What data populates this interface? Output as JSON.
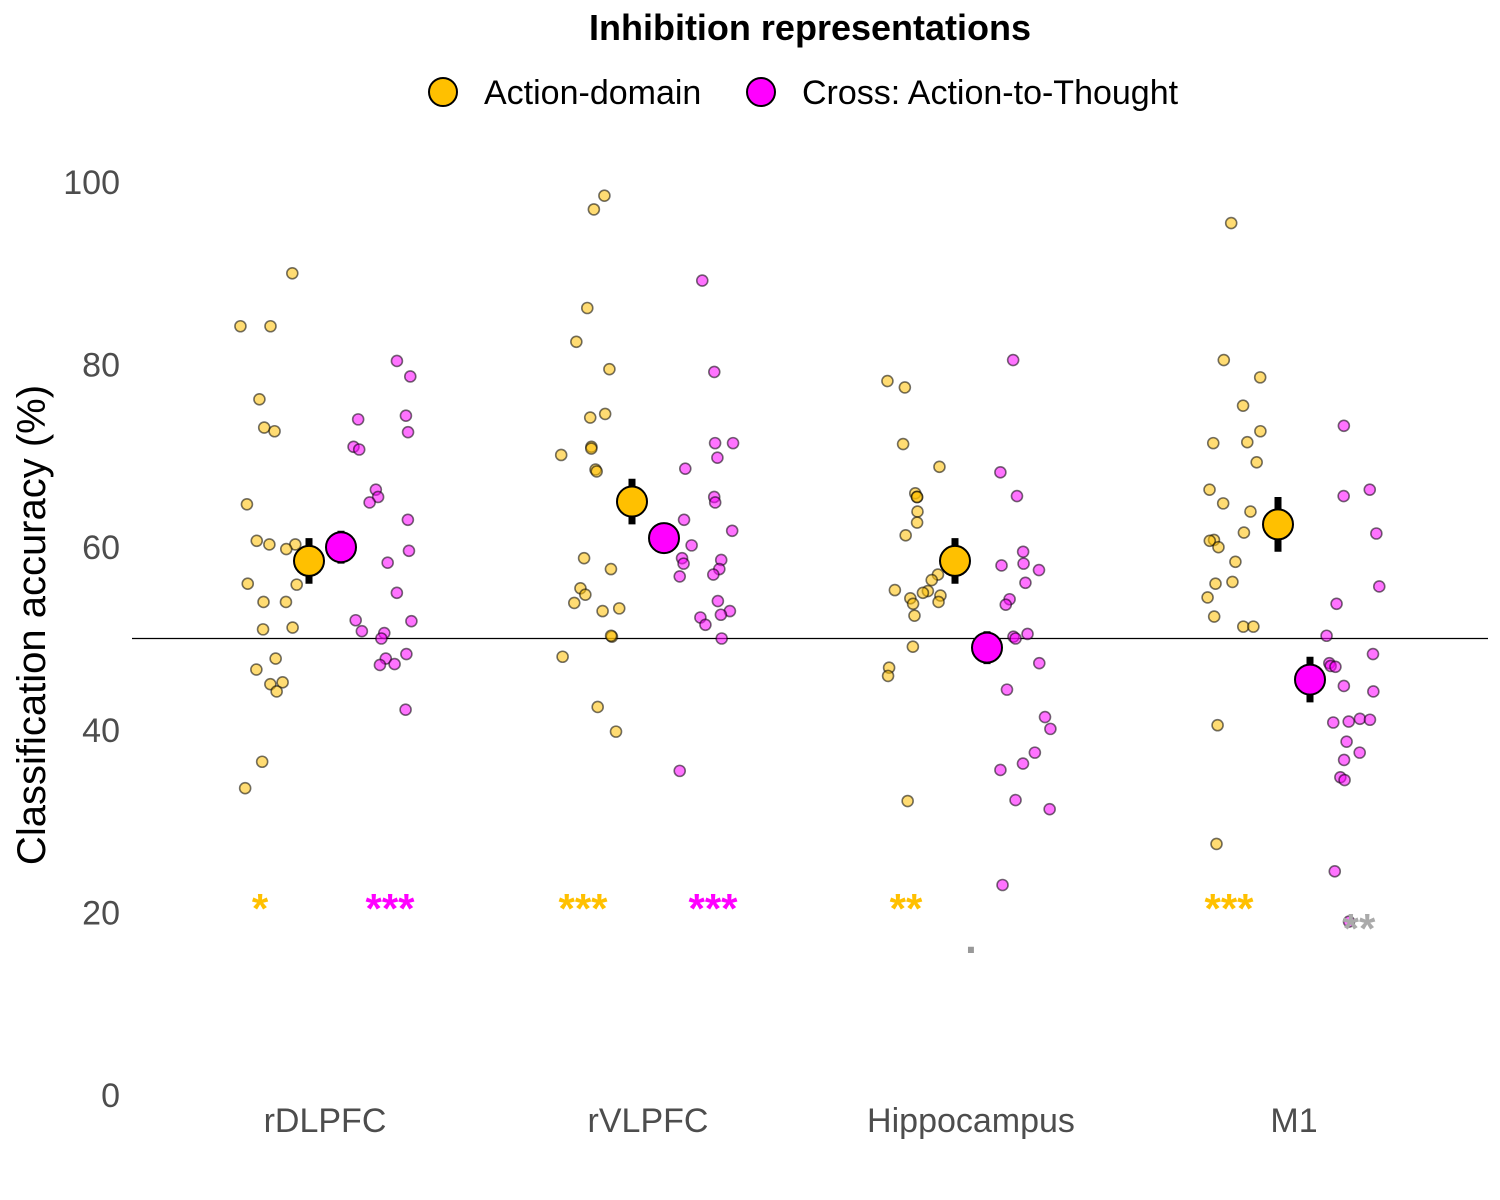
{
  "chart_data": {
    "type": "scatter",
    "title": "Inhibition representations",
    "ylabel": "Classification accuracy (%)",
    "xlabel": "",
    "ylim": [
      0,
      100
    ],
    "yticks": [
      0,
      20,
      40,
      60,
      80,
      100
    ],
    "chance_line": 50,
    "grid": false,
    "legend_position": "top",
    "categories": [
      "rDLPFC",
      "rVLPFC",
      "Hippocampus",
      "M1"
    ],
    "series": [
      {
        "name": "Action-domain",
        "color": "#FFC000",
        "means": [
          58.5,
          65.0,
          58.5,
          62.5
        ],
        "errors": [
          2.5,
          2.5,
          2.5,
          3.0
        ],
        "significance": [
          "*",
          "***",
          "**",
          "***"
        ],
        "points": [
          [
            90,
            84.2,
            84.2,
            76.2,
            73.1,
            72.7,
            64.7,
            60.7,
            60.3,
            60.3,
            59.8,
            56.0,
            55.9,
            54.0,
            54.0,
            51.2,
            51.0,
            47.8,
            46.6,
            45.2,
            45.0,
            44.2,
            36.5,
            33.6
          ],
          [
            98.5,
            97.0,
            86.2,
            82.5,
            79.5,
            74.6,
            74.2,
            71.0,
            70.8,
            70.1,
            68.5,
            68.3,
            58.8,
            57.6,
            55.5,
            54.8,
            53.9,
            53.3,
            53.0,
            50.2,
            50.3,
            48.0,
            42.5,
            39.8
          ],
          [
            78.2,
            77.5,
            71.3,
            68.8,
            65.9,
            65.5,
            65.5,
            63.9,
            62.7,
            61.3,
            57.0,
            56.4,
            55.3,
            55.2,
            55.0,
            54.7,
            54.4,
            54.0,
            53.8,
            52.5,
            49.1,
            46.8,
            45.9,
            32.2
          ],
          [
            95.5,
            80.5,
            78.6,
            75.5,
            72.7,
            71.5,
            71.4,
            69.3,
            66.3,
            64.8,
            63.9,
            61.6,
            60.8,
            60.7,
            60.0,
            58.4,
            56.2,
            56.0,
            54.5,
            52.4,
            51.3,
            51.3,
            40.5,
            27.5
          ]
        ]
      },
      {
        "name": "Cross: Action-to-Thought",
        "color": "#FF00FF",
        "means": [
          60.0,
          61.0,
          49.0,
          45.5
        ],
        "errors": [
          1.8,
          1.5,
          1.8,
          2.5
        ],
        "significance": [
          "***",
          "***",
          ".",
          "**"
        ],
        "sig_colors": [
          "#FF00FF",
          "#FF00FF",
          "#999999",
          "#AAAAAA"
        ],
        "points": [
          [
            80.4,
            78.7,
            74.4,
            74.0,
            72.6,
            71.0,
            70.7,
            66.3,
            65.5,
            64.9,
            63.0,
            59.6,
            58.3,
            55.0,
            52.0,
            51.9,
            50.8,
            50.6,
            50.0,
            48.3,
            47.8,
            47.2,
            47.1,
            42.2
          ],
          [
            89.2,
            79.2,
            71.4,
            71.4,
            69.8,
            68.6,
            65.5,
            64.9,
            63.0,
            61.8,
            60.2,
            58.8,
            58.6,
            58.2,
            57.6,
            57.0,
            56.8,
            54.1,
            53.0,
            52.6,
            52.3,
            51.5,
            50.0,
            35.5
          ],
          [
            80.5,
            68.2,
            65.6,
            59.5,
            58.2,
            58.0,
            57.5,
            56.1,
            54.3,
            53.7,
            50.5,
            50.2,
            50.0,
            47.3,
            44.4,
            41.4,
            40.1,
            37.5,
            36.3,
            35.6,
            32.3,
            31.3,
            23.0
          ],
          [
            73.3,
            66.3,
            65.6,
            61.5,
            55.7,
            53.8,
            50.3,
            48.3,
            47.3,
            47.0,
            46.9,
            44.8,
            44.2,
            41.2,
            41.1,
            40.9,
            40.8,
            38.7,
            37.5,
            36.7,
            34.8,
            34.5,
            24.5,
            19.0
          ]
        ]
      }
    ]
  }
}
